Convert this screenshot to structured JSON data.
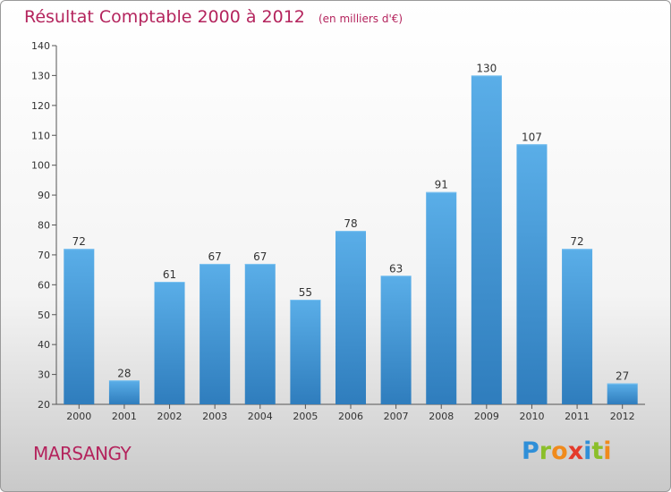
{
  "title": "Résultat Comptable 2000 à 2012",
  "unit_note": "(en milliers d'€)",
  "commune": "MARSANGY",
  "logo": {
    "letters": [
      "P",
      "r",
      "o",
      "x",
      "i",
      "t",
      "i"
    ]
  },
  "colors": {
    "title": "#b4245d",
    "bar_top": "#5aaee8",
    "bar_bottom": "#2f7dbd",
    "axis": "#555555"
  },
  "chart_data": {
    "type": "bar",
    "categories": [
      "2000",
      "2001",
      "2002",
      "2003",
      "2004",
      "2005",
      "2006",
      "2007",
      "2008",
      "2009",
      "2010",
      "2011",
      "2012"
    ],
    "values": [
      72,
      28,
      61,
      67,
      67,
      55,
      78,
      63,
      91,
      130,
      107,
      72,
      27
    ],
    "ylim": [
      20,
      140
    ],
    "yticks": [
      20,
      30,
      40,
      50,
      60,
      70,
      80,
      90,
      100,
      110,
      120,
      130,
      140
    ],
    "grid": false,
    "legend": "none",
    "data_labels": true
  }
}
